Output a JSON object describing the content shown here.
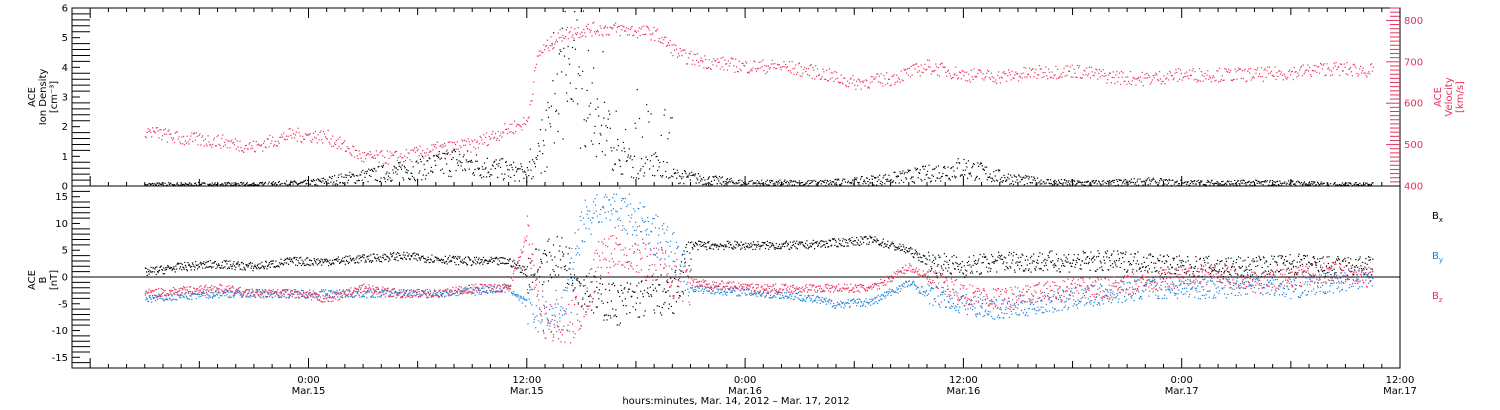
{
  "chart_data": [
    {
      "type": "scatter",
      "panel": "top",
      "left_axis": {
        "label_lines": [
          "ACE",
          "Ion Density",
          "[cm⁻³]"
        ],
        "range": [
          0,
          6
        ],
        "ticks": [
          "0",
          "1",
          "2",
          "3",
          "4",
          "5",
          "6"
        ]
      },
      "right_axis": {
        "label_lines": [
          "ACE",
          "Velocity",
          "[km/s]"
        ],
        "range": [
          400,
          830
        ],
        "ticks": [
          "400",
          "500",
          "600",
          "700",
          "800"
        ],
        "color": "#e8305a"
      },
      "series": [
        {
          "axis": "left",
          "color": "#000000",
          "points": [
            [
              -9,
              0.05
            ],
            [
              -6,
              0.05
            ],
            [
              -3,
              0.05
            ],
            [
              0,
              0.1
            ],
            [
              2,
              0.25
            ],
            [
              4,
              0.4
            ],
            [
              6,
              0.55
            ],
            [
              8,
              0.8
            ],
            [
              10,
              0.6
            ],
            [
              12,
              0.4
            ],
            [
              13,
              1.2
            ],
            [
              14,
              3.5
            ],
            [
              15,
              2.6
            ],
            [
              16,
              2.0
            ],
            [
              17,
              1.0
            ],
            [
              18,
              0.6
            ],
            [
              19,
              0.7
            ],
            [
              20,
              0.35
            ],
            [
              22,
              0.2
            ],
            [
              24,
              0.1
            ],
            [
              26,
              0.1
            ],
            [
              28,
              0.1
            ],
            [
              30,
              0.15
            ],
            [
              32,
              0.25
            ],
            [
              34,
              0.4
            ],
            [
              36,
              0.6
            ],
            [
              38,
              0.3
            ],
            [
              40,
              0.15
            ],
            [
              42,
              0.1
            ],
            [
              44,
              0.1
            ],
            [
              46,
              0.15
            ],
            [
              48,
              0.1
            ],
            [
              50,
              0.1
            ],
            [
              52,
              0.1
            ],
            [
              54,
              0.1
            ],
            [
              56,
              0.05
            ],
            [
              58.5,
              0.05
            ]
          ]
        },
        {
          "axis": "right",
          "color": "#e8305a",
          "points": [
            [
              -9,
              535
            ],
            [
              -7,
              515
            ],
            [
              -5,
              510
            ],
            [
              -3,
              495
            ],
            [
              -1,
              525
            ],
            [
              1,
              520
            ],
            [
              3,
              470
            ],
            [
              5,
              470
            ],
            [
              7,
              490
            ],
            [
              9,
              500
            ],
            [
              11,
              540
            ],
            [
              12,
              555
            ],
            [
              12.6,
              720
            ],
            [
              14,
              770
            ],
            [
              15.5,
              780
            ],
            [
              17,
              780
            ],
            [
              19,
              770
            ],
            [
              20.5,
              715
            ],
            [
              22,
              700
            ],
            [
              24,
              690
            ],
            [
              26,
              690
            ],
            [
              28,
              675
            ],
            [
              30,
              650
            ],
            [
              32,
              660
            ],
            [
              34,
              690
            ],
            [
              36,
              670
            ],
            [
              38,
              665
            ],
            [
              40,
              675
            ],
            [
              42,
              680
            ],
            [
              44,
              665
            ],
            [
              46,
              660
            ],
            [
              48,
              670
            ],
            [
              50,
              670
            ],
            [
              52,
              670
            ],
            [
              54,
              675
            ],
            [
              56,
              685
            ],
            [
              58.5,
              680
            ]
          ]
        }
      ]
    },
    {
      "type": "scatter",
      "panel": "bottom",
      "left_axis": {
        "label_lines": [
          "ACE",
          "B",
          "[nT]"
        ],
        "range": [
          -17,
          17
        ],
        "ticks": [
          "-15",
          "-10",
          "-5",
          "0",
          "5",
          "10",
          "15"
        ]
      },
      "series": [
        {
          "name": "B",
          "subscript": "x",
          "color": "#000000",
          "points": [
            [
              -9,
              1
            ],
            [
              -7,
              2
            ],
            [
              -5,
              2.5
            ],
            [
              -3,
              2
            ],
            [
              -1,
              3
            ],
            [
              1,
              3
            ],
            [
              3,
              3.5
            ],
            [
              5,
              4
            ],
            [
              7,
              3.5
            ],
            [
              9,
              3
            ],
            [
              11,
              3
            ],
            [
              12,
              1
            ],
            [
              13,
              3
            ],
            [
              14,
              4
            ],
            [
              15,
              -2
            ],
            [
              16,
              -4
            ],
            [
              17,
              -5
            ],
            [
              18,
              -4
            ],
            [
              19,
              -3
            ],
            [
              20,
              -4
            ],
            [
              21,
              6
            ],
            [
              23,
              6
            ],
            [
              25,
              6
            ],
            [
              27,
              6
            ],
            [
              29,
              6.5
            ],
            [
              31,
              7
            ],
            [
              33,
              5
            ],
            [
              34,
              3
            ],
            [
              36,
              2
            ],
            [
              38,
              3
            ],
            [
              40,
              3
            ],
            [
              42,
              3
            ],
            [
              44,
              3
            ],
            [
              46,
              3
            ],
            [
              48,
              2
            ],
            [
              50,
              2
            ],
            [
              52,
              2
            ],
            [
              54,
              2.5
            ],
            [
              56,
              2
            ],
            [
              58.5,
              2
            ]
          ]
        },
        {
          "name": "B",
          "subscript": "y",
          "color": "#1a7fd6",
          "points": [
            [
              -9,
              -4
            ],
            [
              -7,
              -3.5
            ],
            [
              -5,
              -3
            ],
            [
              -3,
              -3
            ],
            [
              -1,
              -3
            ],
            [
              1,
              -3
            ],
            [
              3,
              -3
            ],
            [
              5,
              -3
            ],
            [
              7,
              -3
            ],
            [
              9,
              -2.5
            ],
            [
              11,
              -2
            ],
            [
              12,
              -5
            ],
            [
              13,
              -8
            ],
            [
              14,
              -5
            ],
            [
              15,
              10
            ],
            [
              16,
              14
            ],
            [
              17,
              13
            ],
            [
              18,
              11
            ],
            [
              19,
              8
            ],
            [
              20,
              5
            ],
            [
              21,
              -2
            ],
            [
              23,
              -2.5
            ],
            [
              25,
              -3
            ],
            [
              27,
              -3.5
            ],
            [
              29,
              -5
            ],
            [
              31,
              -4.5
            ],
            [
              33,
              -1
            ],
            [
              34,
              -3
            ],
            [
              36,
              -5
            ],
            [
              38,
              -6
            ],
            [
              40,
              -5
            ],
            [
              42,
              -4
            ],
            [
              44,
              -3
            ],
            [
              46,
              -2
            ],
            [
              48,
              -2
            ],
            [
              50,
              -2
            ],
            [
              52,
              -1
            ],
            [
              54,
              -2
            ],
            [
              56,
              -1
            ],
            [
              58.5,
              0
            ]
          ]
        },
        {
          "name": "B",
          "subscript": "z",
          "color": "#e8305a",
          "points": [
            [
              -9,
              -3
            ],
            [
              -7,
              -2.5
            ],
            [
              -5,
              -2
            ],
            [
              -3,
              -3
            ],
            [
              -1,
              -3
            ],
            [
              1,
              -4
            ],
            [
              3,
              -2
            ],
            [
              5,
              -3
            ],
            [
              7,
              -3
            ],
            [
              9,
              -2
            ],
            [
              11,
              -2
            ],
            [
              12,
              8
            ],
            [
              13,
              -8
            ],
            [
              14,
              -10
            ],
            [
              15,
              -6
            ],
            [
              16,
              4
            ],
            [
              17,
              6
            ],
            [
              18,
              4
            ],
            [
              19,
              3
            ],
            [
              20,
              0
            ],
            [
              21,
              -1
            ],
            [
              23,
              -1.5
            ],
            [
              25,
              -2
            ],
            [
              27,
              -2
            ],
            [
              29,
              -2
            ],
            [
              31,
              -2
            ],
            [
              33,
              2
            ],
            [
              34,
              0
            ],
            [
              36,
              -3
            ],
            [
              38,
              -4
            ],
            [
              40,
              -3
            ],
            [
              42,
              -2
            ],
            [
              44,
              -2
            ],
            [
              46,
              -1
            ],
            [
              48,
              0
            ],
            [
              50,
              1
            ],
            [
              52,
              -1
            ],
            [
              54,
              0
            ],
            [
              56,
              1
            ],
            [
              58.5,
              0
            ]
          ]
        }
      ]
    }
  ],
  "x_axis": {
    "range_hours": [
      -13,
      60
    ],
    "ticks": [
      {
        "hour": 0,
        "time": "0:00",
        "date": "Mar.15"
      },
      {
        "hour": 12,
        "time": "12:00",
        "date": "Mar.15"
      },
      {
        "hour": 24,
        "time": "0:00",
        "date": "Mar.16"
      },
      {
        "hour": 36,
        "time": "12:00",
        "date": "Mar.16"
      },
      {
        "hour": 48,
        "time": "0:00",
        "date": "Mar.17"
      },
      {
        "hour": 60,
        "time": "12:00",
        "date": "Mar.17"
      }
    ],
    "label": "hours:minutes, Mar. 14, 2012 – Mar. 17, 2012"
  },
  "legend": {
    "placement": "right",
    "colors": [
      "#000000",
      "#1a7fd6",
      "#e8305a"
    ]
  }
}
